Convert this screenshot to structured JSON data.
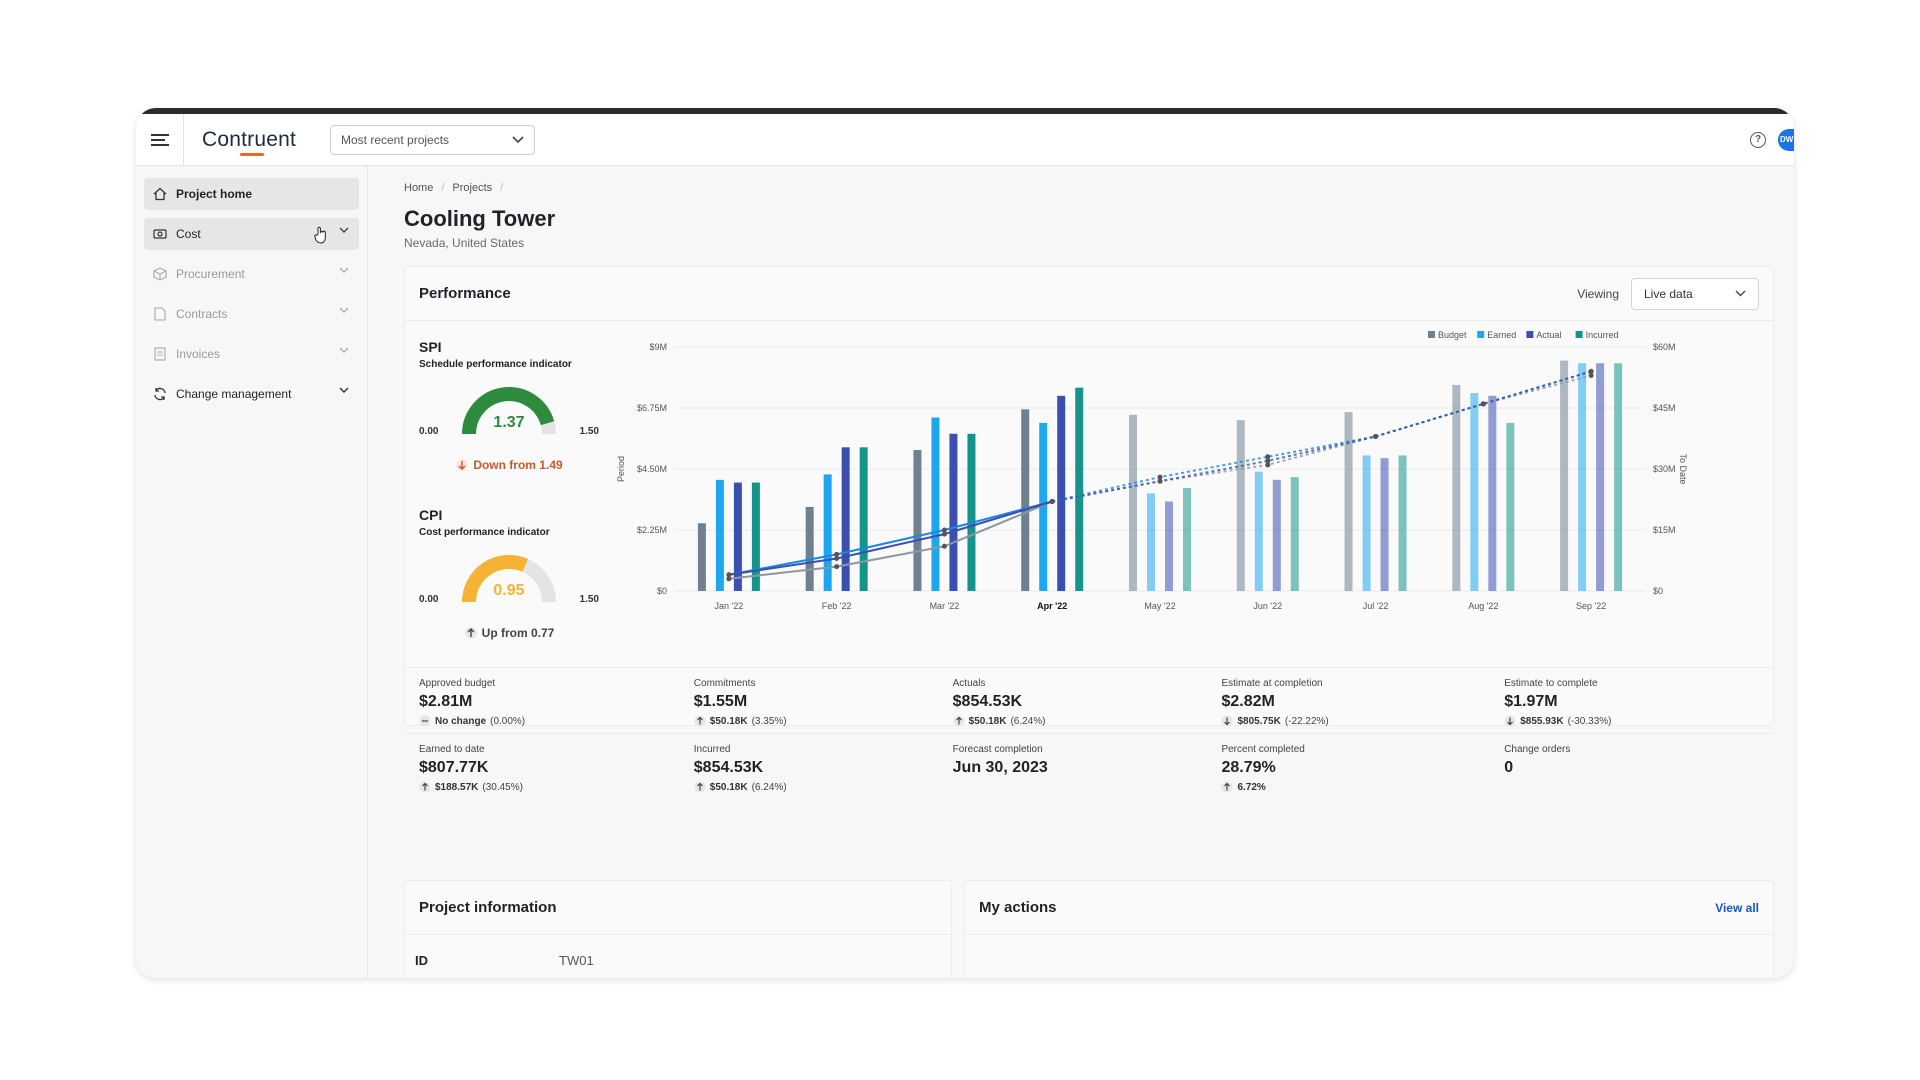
{
  "header": {
    "logo": "Contruent",
    "project_selector": "Most recent projects",
    "avatar_initials": "DW"
  },
  "sidebar": {
    "items": [
      {
        "label": "Project home",
        "icon": "home-icon"
      },
      {
        "label": "Cost",
        "icon": "money-icon"
      },
      {
        "label": "Procurement",
        "icon": "box-icon"
      },
      {
        "label": "Contracts",
        "icon": "document-icon"
      },
      {
        "label": "Invoices",
        "icon": "invoice-icon"
      },
      {
        "label": "Change management",
        "icon": "refresh-icon"
      }
    ]
  },
  "breadcrumb": [
    "Home",
    "Projects"
  ],
  "project": {
    "title": "Cooling Tower",
    "location": "Nevada, United States"
  },
  "performance": {
    "title": "Performance",
    "viewing_label": "Viewing",
    "viewing_value": "Live data",
    "spi": {
      "title": "SPI",
      "subtitle": "Schedule performance indicator",
      "min": "0.00",
      "max": "1.50",
      "value": "1.37",
      "trend": "Down from 1.49",
      "color": "#2e8b3e",
      "trend_color": "#c85a2a",
      "fraction": 0.913
    },
    "cpi": {
      "title": "CPI",
      "subtitle": "Cost performance indicator",
      "min": "0.00",
      "max": "1.50",
      "value": "0.95",
      "trend": "Up from 0.77",
      "color": "#f5b335",
      "trend_color": "#444444",
      "fraction": 0.633
    }
  },
  "chart_data": {
    "type": "bar",
    "categories": [
      "Jan '22",
      "Feb '22",
      "Mar '22",
      "Apr '22",
      "May '22",
      "Jun '22",
      "Jul '22",
      "Aug '22",
      "Sep '22"
    ],
    "current_index": 3,
    "ylabel_left": "Period",
    "ylabel_right": "To Date",
    "yticks_left": [
      "$0",
      "$2.25M",
      "$4.50M",
      "$6.75M",
      "$9M"
    ],
    "yticks_right": [
      "$0",
      "$15M",
      "$30M",
      "$45M",
      "$60M"
    ],
    "ylim_left": [
      0,
      9
    ],
    "ylim_right": [
      0,
      60
    ],
    "legend": [
      {
        "name": "Budget",
        "color": "#6f8190"
      },
      {
        "name": "Earned",
        "color": "#1ea7ef"
      },
      {
        "name": "Actual",
        "color": "#3a4fb0"
      },
      {
        "name": "Incurred",
        "color": "#14948a"
      }
    ],
    "series": [
      {
        "name": "Budget",
        "values": [
          2.5,
          3.1,
          5.2,
          6.7,
          6.5,
          6.3,
          6.6,
          7.6,
          8.5
        ]
      },
      {
        "name": "Earned",
        "values": [
          4.1,
          4.3,
          6.4,
          6.2,
          3.6,
          4.4,
          5.0,
          7.3,
          8.4
        ]
      },
      {
        "name": "Actual",
        "values": [
          4.0,
          5.3,
          5.8,
          7.2,
          3.3,
          4.1,
          4.9,
          7.2,
          8.4
        ]
      },
      {
        "name": "Incurred",
        "values": [
          4.0,
          5.3,
          5.8,
          7.5,
          3.8,
          4.2,
          5.0,
          6.2,
          8.4
        ]
      }
    ],
    "cumulative": [
      {
        "name": "Budget",
        "values": [
          3,
          6,
          11,
          22,
          27,
          31,
          38,
          46,
          53
        ]
      },
      {
        "name": "Earned",
        "values": [
          4,
          9,
          15,
          22,
          28,
          33,
          38,
          46,
          54
        ]
      },
      {
        "name": "Actual",
        "values": [
          4,
          8,
          14,
          22,
          27,
          32,
          38,
          46,
          54
        ]
      }
    ]
  },
  "metrics": {
    "row1": [
      {
        "label": "Approved budget",
        "value": "$2.81M",
        "delta_dir": "none",
        "delta_bold": "No change",
        "delta_pct": "(0.00%)"
      },
      {
        "label": "Commitments",
        "value": "$1.55M",
        "delta_dir": "up",
        "delta_bold": "$50.18K",
        "delta_pct": "(3.35%)"
      },
      {
        "label": "Actuals",
        "value": "$854.53K",
        "delta_dir": "up",
        "delta_bold": "$50.18K",
        "delta_pct": "(6.24%)"
      },
      {
        "label": "Estimate at completion",
        "value": "$2.82M",
        "delta_dir": "down",
        "delta_bold": "$805.75K",
        "delta_pct": "(-22.22%)"
      },
      {
        "label": "Estimate to complete",
        "value": "$1.97M",
        "delta_dir": "down",
        "delta_bold": "$855.93K",
        "delta_pct": "(-30.33%)"
      }
    ],
    "row2": [
      {
        "label": "Earned to date",
        "value": "$807.77K",
        "delta_dir": "up",
        "delta_bold": "$188.57K",
        "delta_pct": "(30.45%)"
      },
      {
        "label": "Incurred",
        "value": "$854.53K",
        "delta_dir": "up",
        "delta_bold": "$50.18K",
        "delta_pct": "(6.24%)"
      },
      {
        "label": "Forecast completion",
        "value": "Jun 30, 2023",
        "delta_dir": "hidden",
        "delta_bold": "",
        "delta_pct": ""
      },
      {
        "label": "Percent completed",
        "value": "28.79%",
        "delta_dir": "up",
        "delta_bold": "6.72%",
        "delta_pct": ""
      },
      {
        "label": "Change orders",
        "value": "0",
        "delta_dir": "hidden",
        "delta_bold": "",
        "delta_pct": ""
      }
    ]
  },
  "project_info": {
    "title": "Project information",
    "id_label": "ID",
    "id_value": "TW01"
  },
  "my_actions": {
    "title": "My actions",
    "view_all": "View all"
  }
}
